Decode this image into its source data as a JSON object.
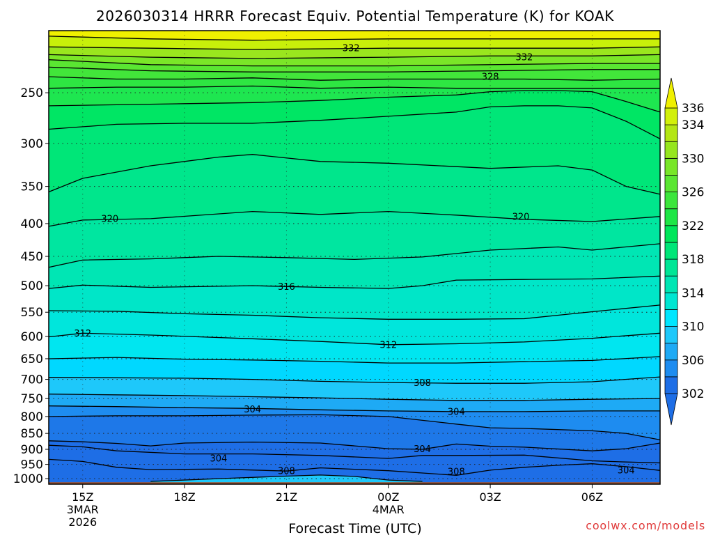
{
  "chart_data": {
    "type": "heatmap",
    "title": "2026030314 HRRR Forecast Equiv. Potential Temperature (K) for KOAK",
    "xlabel": "Forecast Time (UTC)",
    "ylabel": "",
    "credit": "coolwx.com/models",
    "y_scale": "log",
    "y_inverted": true,
    "ylim": [
      1020,
      200
    ],
    "grid": true,
    "y_ticks": [
      250,
      300,
      350,
      400,
      450,
      500,
      550,
      600,
      650,
      700,
      750,
      800,
      850,
      900,
      950,
      1000
    ],
    "y_tick_labels": [
      "250",
      "300",
      "350",
      "400",
      "450",
      "500",
      "550",
      "600",
      "650",
      "700",
      "750",
      "800",
      "850",
      "900",
      "950",
      "1000"
    ],
    "x_hours": [
      14,
      15,
      16,
      17,
      18,
      19,
      20,
      21,
      22,
      23,
      24,
      25,
      26,
      27,
      28,
      29,
      30,
      31,
      32
    ],
    "x_ticks": [
      {
        "hour": 15,
        "label": "15Z",
        "sub": [
          "3MAR",
          "2026"
        ]
      },
      {
        "hour": 18,
        "label": "18Z",
        "sub": []
      },
      {
        "hour": 21,
        "label": "21Z",
        "sub": []
      },
      {
        "hour": 24,
        "label": "00Z",
        "sub": [
          "4MAR"
        ]
      },
      {
        "hour": 27,
        "label": "03Z",
        "sub": []
      },
      {
        "hour": 30,
        "label": "06Z",
        "sub": []
      }
    ],
    "colorbar": {
      "levels": [
        302,
        304,
        306,
        308,
        310,
        312,
        314,
        316,
        318,
        320,
        322,
        324,
        326,
        328,
        330,
        332,
        334,
        336
      ],
      "labels": [
        "302",
        "306",
        "310",
        "314",
        "318",
        "322",
        "326",
        "330",
        "334",
        "336"
      ],
      "colors": [
        "#1e6ee6",
        "#1e8cf0",
        "#1eaaf5",
        "#1ec8fa",
        "#00e6ff",
        "#00e6d2",
        "#00e6b4",
        "#00e696",
        "#00e678",
        "#00e65a",
        "#1ee646",
        "#3ce63c",
        "#5ae632",
        "#78e628",
        "#96e61e",
        "#b4e614",
        "#d2f00a",
        "#f0f000"
      ],
      "extend": "both"
    },
    "ground_color": "#a0522d",
    "ground_pressure": 1013,
    "series": [
      {
        "values": [
          [
            14,
            204
          ],
          [
            17,
            206
          ],
          [
            20,
            207
          ],
          [
            24,
            206
          ],
          [
            27,
            206
          ],
          [
            30,
            206
          ],
          [
            32,
            206
          ]
        ]
      },
      {
        "values": [
          [
            14,
            212
          ],
          [
            17,
            213
          ],
          [
            20,
            214
          ],
          [
            24,
            213
          ],
          [
            27,
            213
          ],
          [
            30,
            213
          ],
          [
            32,
            212
          ]
        ]
      },
      {
        "values": [
          [
            14,
            218
          ],
          [
            17,
            220
          ],
          [
            20,
            221
          ],
          [
            24,
            220
          ],
          [
            27,
            219
          ],
          [
            30,
            219
          ],
          [
            32,
            218
          ]
        ]
      },
      {
        "values": [
          [
            14,
            222
          ],
          [
            17,
            226
          ],
          [
            20,
            227
          ],
          [
            24,
            227
          ],
          [
            27,
            226
          ],
          [
            30,
            225
          ],
          [
            32,
            225
          ]
        ]
      },
      {
        "values": [
          [
            14,
            228
          ],
          [
            17,
            231
          ],
          [
            20,
            232
          ],
          [
            24,
            232
          ],
          [
            27,
            231
          ],
          [
            30,
            230
          ],
          [
            32,
            230
          ]
        ]
      },
      {
        "values": [
          [
            14,
            236
          ],
          [
            16,
            238
          ],
          [
            18,
            238
          ],
          [
            20,
            237
          ],
          [
            22,
            239
          ],
          [
            24,
            238
          ],
          [
            26,
            238
          ],
          [
            28,
            238
          ],
          [
            30,
            239
          ],
          [
            32,
            238
          ]
        ]
      },
      {
        "values": [
          [
            14,
            246
          ],
          [
            16,
            245
          ],
          [
            18,
            245
          ],
          [
            20,
            244
          ],
          [
            22,
            246
          ],
          [
            24,
            245
          ],
          [
            26,
            246
          ],
          [
            28,
            246
          ],
          [
            30,
            246
          ],
          [
            32,
            246
          ]
        ]
      },
      {
        "values": [
          [
            14,
            262
          ],
          [
            16,
            261
          ],
          [
            18,
            260
          ],
          [
            20,
            259
          ],
          [
            22,
            257
          ],
          [
            24,
            254
          ],
          [
            26,
            252
          ],
          [
            27,
            249
          ],
          [
            28,
            248
          ],
          [
            29,
            248
          ],
          [
            30,
            249
          ],
          [
            31,
            258
          ],
          [
            32,
            268
          ]
        ]
      },
      {
        "values": [
          [
            14,
            285
          ],
          [
            16,
            280
          ],
          [
            18,
            279
          ],
          [
            20,
            279
          ],
          [
            22,
            276
          ],
          [
            24,
            272
          ],
          [
            26,
            268
          ],
          [
            27,
            263
          ],
          [
            28,
            262
          ],
          [
            29,
            262
          ],
          [
            30,
            264
          ],
          [
            31,
            277
          ],
          [
            32,
            295
          ]
        ]
      },
      {
        "values": [
          [
            14,
            357
          ],
          [
            15,
            340
          ],
          [
            17,
            325
          ],
          [
            19,
            315
          ],
          [
            20,
            312
          ],
          [
            22,
            320
          ],
          [
            24,
            322
          ],
          [
            26,
            326
          ],
          [
            27,
            328
          ],
          [
            29,
            325
          ],
          [
            30,
            330
          ],
          [
            31,
            350
          ],
          [
            32,
            360
          ]
        ]
      },
      {
        "values": [
          [
            14,
            404
          ],
          [
            15,
            395
          ],
          [
            17,
            393
          ],
          [
            20,
            383
          ],
          [
            22,
            387
          ],
          [
            24,
            383
          ],
          [
            26,
            388
          ],
          [
            28,
            394
          ],
          [
            30,
            397
          ],
          [
            32,
            390
          ]
        ]
      },
      {
        "values": [
          [
            14,
            468
          ],
          [
            15,
            456
          ],
          [
            17,
            454
          ],
          [
            19,
            450
          ],
          [
            21,
            452
          ],
          [
            23,
            455
          ],
          [
            25,
            451
          ],
          [
            27,
            440
          ],
          [
            29,
            435
          ],
          [
            30,
            440
          ],
          [
            32,
            430
          ]
        ]
      },
      {
        "values": [
          [
            14,
            505
          ],
          [
            15,
            499
          ],
          [
            17,
            503
          ],
          [
            20,
            500
          ],
          [
            22,
            503
          ],
          [
            24,
            505
          ],
          [
            25,
            500
          ],
          [
            26,
            490
          ],
          [
            28,
            489
          ],
          [
            30,
            488
          ],
          [
            32,
            483
          ]
        ]
      },
      {
        "values": [
          [
            14,
            547
          ],
          [
            16,
            548
          ],
          [
            18,
            553
          ],
          [
            20,
            556
          ],
          [
            22,
            561
          ],
          [
            24,
            564
          ],
          [
            26,
            564
          ],
          [
            28,
            563
          ],
          [
            29,
            556
          ],
          [
            30,
            549
          ],
          [
            32,
            536
          ]
        ]
      },
      {
        "values": [
          [
            14,
            601
          ],
          [
            15,
            593
          ],
          [
            17,
            597
          ],
          [
            20,
            605
          ],
          [
            22,
            611
          ],
          [
            24,
            618
          ],
          [
            26,
            616
          ],
          [
            28,
            612
          ],
          [
            30,
            604
          ],
          [
            32,
            593
          ]
        ]
      },
      {
        "values": [
          [
            14,
            650
          ],
          [
            16,
            647
          ],
          [
            18,
            651
          ],
          [
            20,
            653
          ],
          [
            22,
            656
          ],
          [
            24,
            660
          ],
          [
            26,
            660
          ],
          [
            28,
            657
          ],
          [
            30,
            654
          ],
          [
            32,
            645
          ]
        ]
      },
      {
        "values": [
          [
            14,
            695
          ],
          [
            16,
            696
          ],
          [
            18,
            697
          ],
          [
            20,
            700
          ],
          [
            22,
            705
          ],
          [
            24,
            708
          ],
          [
            26,
            710
          ],
          [
            28,
            710
          ],
          [
            30,
            706
          ],
          [
            32,
            694
          ]
        ]
      },
      {
        "values": [
          [
            14,
            738
          ],
          [
            16,
            740
          ],
          [
            18,
            742
          ],
          [
            20,
            745
          ],
          [
            22,
            748
          ],
          [
            24,
            752
          ],
          [
            26,
            755
          ],
          [
            28,
            755
          ],
          [
            30,
            752
          ],
          [
            32,
            750
          ]
        ]
      },
      {
        "values": [
          [
            14,
            770
          ],
          [
            16,
            772
          ],
          [
            18,
            775
          ],
          [
            20,
            777
          ],
          [
            22,
            781
          ],
          [
            24,
            784
          ],
          [
            26,
            786
          ],
          [
            28,
            786
          ],
          [
            30,
            784
          ],
          [
            32,
            784
          ]
        ]
      },
      {
        "values": [
          [
            14,
            800
          ],
          [
            16,
            798
          ],
          [
            18,
            798
          ],
          [
            20,
            796
          ],
          [
            22,
            795
          ],
          [
            24,
            800
          ],
          [
            26,
            822
          ],
          [
            27,
            833
          ],
          [
            28,
            835
          ],
          [
            30,
            842
          ],
          [
            31,
            850
          ],
          [
            32,
            870
          ]
        ]
      },
      {
        "values": [
          [
            14,
            873
          ],
          [
            15,
            876
          ],
          [
            16,
            881
          ],
          [
            17,
            889
          ],
          [
            18,
            880
          ],
          [
            20,
            877
          ],
          [
            22,
            880
          ],
          [
            24,
            898
          ],
          [
            25,
            900
          ],
          [
            26,
            883
          ],
          [
            27,
            890
          ],
          [
            28,
            893
          ],
          [
            30,
            905
          ],
          [
            31,
            898
          ],
          [
            32,
            880
          ]
        ]
      },
      {
        "values": [
          [
            14,
            887
          ],
          [
            15,
            892
          ],
          [
            16,
            905
          ],
          [
            18,
            915
          ],
          [
            20,
            915
          ],
          [
            22,
            920
          ],
          [
            24,
            930
          ],
          [
            25,
            920
          ],
          [
            26,
            920
          ],
          [
            28,
            919
          ],
          [
            30,
            938
          ],
          [
            31,
            942
          ],
          [
            32,
            945
          ]
        ]
      },
      {
        "values": [
          [
            14,
            933
          ],
          [
            15,
            940
          ],
          [
            16,
            960
          ],
          [
            17,
            968
          ],
          [
            19,
            966
          ],
          [
            21,
            973
          ],
          [
            22,
            962
          ],
          [
            24,
            972
          ],
          [
            25,
            980
          ],
          [
            26,
            988
          ],
          [
            27,
            970
          ],
          [
            28,
            960
          ],
          [
            29,
            953
          ],
          [
            30,
            948
          ],
          [
            31,
            958
          ],
          [
            32,
            971
          ]
        ]
      },
      {
        "values": [
          [
            17,
            1010
          ],
          [
            19,
            1000
          ],
          [
            21,
            991
          ],
          [
            22,
            987
          ],
          [
            23,
            992
          ],
          [
            24,
            1005
          ],
          [
            25,
            1010
          ]
        ]
      }
    ],
    "contour_labels": [
      {
        "text": "332",
        "hour": 22.9,
        "p": 213
      },
      {
        "text": "332",
        "hour": 28.0,
        "p": 220
      },
      {
        "text": "328",
        "hour": 27.0,
        "p": 236
      },
      {
        "text": "320",
        "hour": 15.8,
        "p": 393
      },
      {
        "text": "320",
        "hour": 27.9,
        "p": 390
      },
      {
        "text": "316",
        "hour": 21.0,
        "p": 502
      },
      {
        "text": "312",
        "hour": 15.0,
        "p": 593
      },
      {
        "text": "312",
        "hour": 24.0,
        "p": 618
      },
      {
        "text": "308",
        "hour": 25.0,
        "p": 709
      },
      {
        "text": "304",
        "hour": 20.0,
        "p": 779
      },
      {
        "text": "304",
        "hour": 26.0,
        "p": 786
      },
      {
        "text": "304",
        "hour": 19.0,
        "p": 930
      },
      {
        "text": "304",
        "hour": 25.0,
        "p": 899
      },
      {
        "text": "308",
        "hour": 21.0,
        "p": 973
      },
      {
        "text": "308",
        "hour": 26.0,
        "p": 975
      },
      {
        "text": "304",
        "hour": 31.0,
        "p": 970
      }
    ]
  }
}
